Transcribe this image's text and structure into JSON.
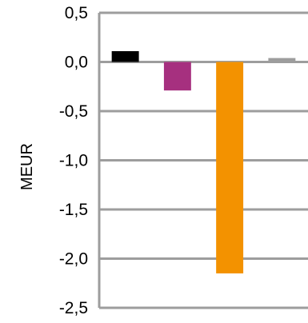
{
  "chart_data": {
    "type": "bar",
    "ylabel": "MEUR",
    "ylim": [
      -2.5,
      0.5
    ],
    "y_ticks": [
      0.5,
      0.0,
      -0.5,
      -1.0,
      -1.5,
      -2.0,
      -2.5
    ],
    "y_tick_labels": [
      "0,5",
      "0,0",
      "-0,5",
      "-1,0",
      "-1,5",
      "-2,0",
      "-2,5"
    ],
    "grid": true,
    "legend": "none",
    "series": [
      {
        "values": [
          0.11,
          -0.29,
          -2.15,
          0.04
        ]
      }
    ],
    "bar_colors": [
      "#000000",
      "#a6307f",
      "#f39200",
      "#9d9d9d"
    ],
    "colors": {
      "grid": "#9d9d9d",
      "axis": "#9d9d9d"
    }
  }
}
